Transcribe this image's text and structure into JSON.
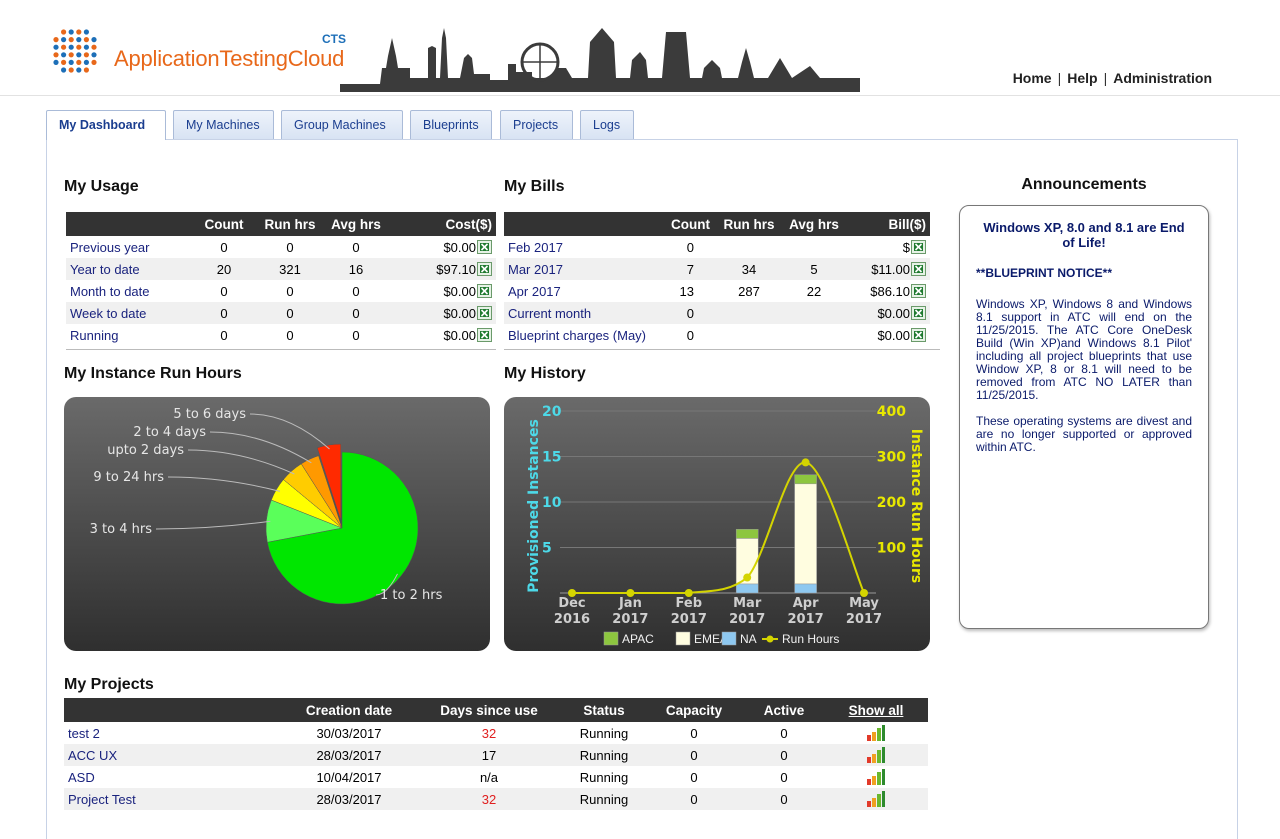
{
  "brand": {
    "name": "ApplicationTestingCloud",
    "suffix": "CTS"
  },
  "topnav": {
    "home": "Home",
    "help": "Help",
    "admin": "Administration",
    "sep": "|"
  },
  "tabs": [
    "My Dashboard",
    "My Machines",
    "Group Machines",
    "Blueprints",
    "Projects",
    "Logs"
  ],
  "usage": {
    "title": "My Usage",
    "headers": [
      "",
      "Count",
      "Run hrs",
      "Avg hrs",
      "Cost($)"
    ],
    "rows": [
      {
        "label": "Previous year",
        "count": "0",
        "run": "0",
        "avg": "0",
        "cost": "$0.00"
      },
      {
        "label": "Year to date",
        "count": "20",
        "run": "321",
        "avg": "16",
        "cost": "$97.10"
      },
      {
        "label": "Month to date",
        "count": "0",
        "run": "0",
        "avg": "0",
        "cost": "$0.00"
      },
      {
        "label": "Week to date",
        "count": "0",
        "run": "0",
        "avg": "0",
        "cost": "$0.00"
      },
      {
        "label": "Running",
        "count": "0",
        "run": "0",
        "avg": "0",
        "cost": "$0.00"
      }
    ]
  },
  "bills": {
    "title": "My Bills",
    "headers": [
      "",
      "Count",
      "Run hrs",
      "Avg hrs",
      "Bill($)"
    ],
    "rows": [
      {
        "label": "Feb 2017",
        "count": "0",
        "run": "",
        "avg": "",
        "bill": "$"
      },
      {
        "label": "Mar 2017",
        "count": "7",
        "run": "34",
        "avg": "5",
        "bill": "$11.00"
      },
      {
        "label": "Apr 2017",
        "count": "13",
        "run": "287",
        "avg": "22",
        "bill": "$86.10"
      },
      {
        "label": "Current month",
        "count": "0",
        "run": "",
        "avg": "",
        "bill": "$0.00"
      },
      {
        "label": "Blueprint charges (May)",
        "count": "0",
        "run": "",
        "avg": "",
        "bill": "$0.00"
      }
    ]
  },
  "instance_title": "My Instance Run Hours",
  "history_title": "My History",
  "projects": {
    "title": "My Projects",
    "headers": [
      "",
      "Creation date",
      "Days since use",
      "Status",
      "Capacity",
      "Active",
      "Show all"
    ],
    "rows": [
      {
        "name": "test 2",
        "created": "30/03/2017",
        "days": "32",
        "days_alert": true,
        "status": "Running",
        "capacity": "0",
        "active": "0"
      },
      {
        "name": "ACC UX",
        "created": "28/03/2017",
        "days": "17",
        "days_alert": false,
        "status": "Running",
        "capacity": "0",
        "active": "0"
      },
      {
        "name": "ASD",
        "created": "10/04/2017",
        "days": "n/a",
        "days_alert": false,
        "status": "Running",
        "capacity": "0",
        "active": "0"
      },
      {
        "name": "Project Test",
        "created": "28/03/2017",
        "days": "32",
        "days_alert": true,
        "status": "Running",
        "capacity": "0",
        "active": "0"
      }
    ]
  },
  "announcements": {
    "title": "Announcements",
    "headline": "Windows XP, 8.0 and 8.1 are End of Life!",
    "notice": "**BLUEPRINT NOTICE**",
    "paragraphs": [
      "Windows XP, Windows 8 and Windows 8.1 support in ATC will end on the 11/25/2015. The ATC Core OneDesk Build (Win XP)and Windows 8.1 Pilot' including all project blueprints that use Window XP, 8 or 8.1 will need to be removed from ATC NO LATER than 11/25/2015.",
      "These operating systems are divest and are no longer supported or approved within ATC."
    ]
  },
  "colors": {
    "pie": [
      "#00e600",
      "#5aff5a",
      "#ffff00",
      "#ffcc00",
      "#ff9900",
      "#ff2a00"
    ],
    "apac": "#8dc63f",
    "emea": "#fffde0",
    "na": "#8ec8f0",
    "run_hours": "#d4d400",
    "left_axis": "#4dd9e8",
    "right_axis": "#e8e800"
  },
  "chart_data": [
    {
      "type": "pie",
      "slices": [
        {
          "label": "1 to 2 hrs",
          "value": 72
        },
        {
          "label": "3 to 4 hrs",
          "value": 9
        },
        {
          "label": "9 to 24 hrs",
          "value": 5
        },
        {
          "label": "upto 2 days",
          "value": 5
        },
        {
          "label": "2 to 4 days",
          "value": 4
        },
        {
          "label": "5 to 6 days",
          "value": 5
        }
      ]
    },
    {
      "type": "bar",
      "categories": [
        "Dec 2016",
        "Jan 2017",
        "Feb 2017",
        "Mar 2017",
        "Apr 2017",
        "May 2017"
      ],
      "category_lines": [
        [
          "Dec",
          "2016"
        ],
        [
          "Jan",
          "2017"
        ],
        [
          "Feb",
          "2017"
        ],
        [
          "Mar",
          "2017"
        ],
        [
          "Apr",
          "2017"
        ],
        [
          "May",
          "2017"
        ]
      ],
      "ylabel": "Provisioned Instances",
      "y2label": "Instance Run Hours",
      "ylim": [
        0,
        20
      ],
      "y2lim": [
        0,
        400
      ],
      "yticks": [
        5,
        10,
        15,
        20
      ],
      "y2ticks": [
        100,
        200,
        300,
        400
      ],
      "series": [
        {
          "name": "NA",
          "values": [
            0,
            0,
            0,
            1,
            1,
            0
          ]
        },
        {
          "name": "EMEA",
          "values": [
            0,
            0,
            0,
            5,
            11,
            0
          ]
        },
        {
          "name": "APAC",
          "values": [
            0,
            0,
            0,
            1,
            1,
            0
          ]
        }
      ],
      "line": {
        "name": "Run Hours",
        "values": [
          0,
          0,
          0,
          34,
          287,
          0
        ]
      },
      "legend": [
        "APAC",
        "EMEA",
        "NA",
        "Run Hours"
      ]
    }
  ]
}
